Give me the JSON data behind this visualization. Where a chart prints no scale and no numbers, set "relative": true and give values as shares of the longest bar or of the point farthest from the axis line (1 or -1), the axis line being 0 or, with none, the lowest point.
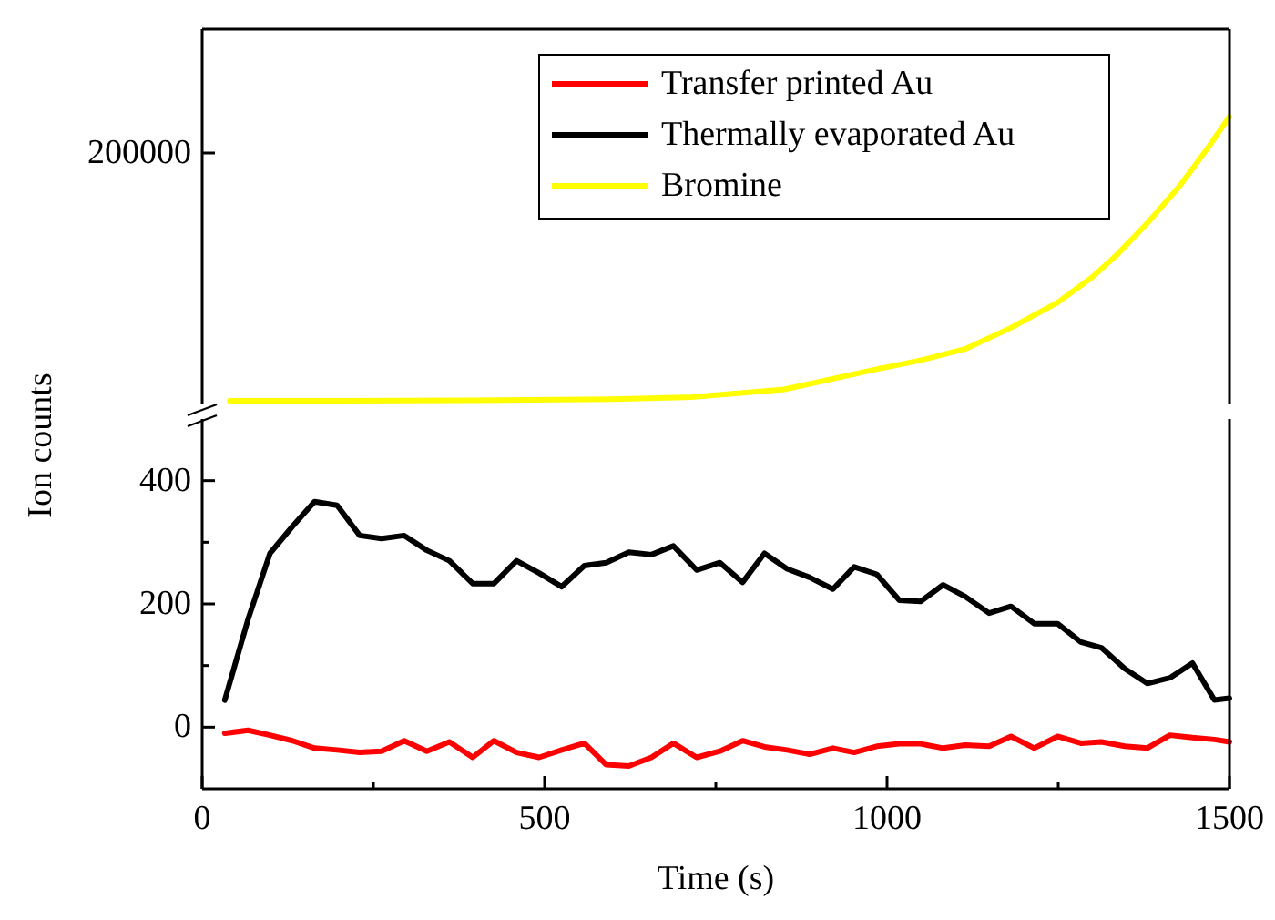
{
  "chart_data": [
    {
      "type": "line",
      "xlim": [
        0,
        1500
      ],
      "relative": true,
      "annotations": [
        "200000"
      ],
      "legend": "top right",
      "series": [
        {
          "name": "Bromine",
          "color": "#ffff00",
          "x": [
            40,
            200,
            400,
            600,
            716,
            850,
            983,
            1050,
            1116,
            1180,
            1249,
            1300,
            1337,
            1380,
            1427,
            1470,
            1500
          ],
          "values": [
            0,
            0,
            0.002,
            0.006,
            0.013,
            0.04,
            0.11,
            0.143,
            0.184,
            0.256,
            0.346,
            0.436,
            0.517,
            0.625,
            0.755,
            0.895,
            1
          ]
        }
      ]
    },
    {
      "type": "line",
      "xlim": [
        0,
        1500
      ],
      "xticks": [
        0,
        {
          "value": 250,
          "label": null
        },
        500,
        {
          "value": 750,
          "label": null
        },
        1000,
        {
          "value": 1250,
          "label": null
        },
        1500
      ],
      "ylim": [
        -100,
        500
      ],
      "yticks": [
        0,
        {
          "value": 100,
          "label": null
        },
        200,
        {
          "value": 300,
          "label": null
        },
        400
      ],
      "xlabel": "Time (s)",
      "ylabel": "Ion counts",
      "x": [
        33,
        67,
        99,
        132,
        164,
        197,
        230,
        262,
        295,
        328,
        361,
        395,
        426,
        459,
        492,
        525,
        558,
        590,
        623,
        656,
        688,
        722,
        756,
        789,
        821,
        854,
        887,
        921,
        952,
        985,
        1018,
        1049,
        1082,
        1114,
        1149,
        1181,
        1215,
        1249,
        1283,
        1313,
        1347,
        1380,
        1413,
        1446,
        1478,
        1500
      ],
      "series": [
        {
          "name": "Transfer printed Au",
          "color": "#ff0000",
          "values": [
            -10,
            -5,
            -13,
            -22,
            -34,
            -37,
            -41,
            -39,
            -22,
            -39,
            -24,
            -49,
            -22,
            -41,
            -49,
            -37,
            -26,
            -61,
            -63,
            -49,
            -26,
            -49,
            -39,
            -22,
            -32,
            -37,
            -44,
            -34,
            -41,
            -31,
            -27,
            -27,
            -34,
            -29,
            -31,
            -15,
            -34,
            -15,
            -26,
            -24,
            -31,
            -34,
            -13,
            -17,
            -20,
            -24
          ]
        },
        {
          "name": "Thermally evaporated Au",
          "color": "#000000",
          "values": [
            44,
            175,
            282,
            326,
            366,
            360,
            311,
            306,
            311,
            287,
            270,
            233,
            233,
            270,
            250,
            228,
            262,
            267,
            284,
            280,
            294,
            255,
            267,
            235,
            282,
            257,
            243,
            224,
            260,
            248,
            206,
            204,
            231,
            212,
            185,
            196,
            168,
            168,
            138,
            129,
            95,
            71,
            80,
            104,
            44,
            47
          ]
        }
      ]
    }
  ]
}
